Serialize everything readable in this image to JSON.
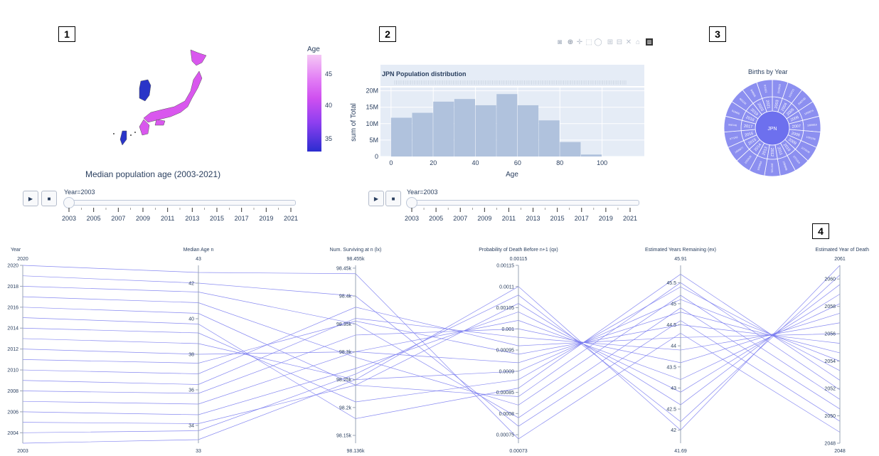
{
  "markers": [
    "1",
    "2",
    "3",
    "4"
  ],
  "map_panel": {
    "title": "Median population age (2003-2021)",
    "colorbar_title": "Age",
    "colorbar_ticks": [
      "45",
      "40",
      "35"
    ],
    "slider_label": "Year=2003",
    "slider_ticks": [
      "2003",
      "2005",
      "2007",
      "2009",
      "2011",
      "2013",
      "2015",
      "2017",
      "2019",
      "2021"
    ],
    "play_icon": "▶",
    "stop_icon": "■",
    "countries": [
      {
        "name": "Japan",
        "value": 44,
        "color": "#d957ee"
      },
      {
        "name": "Korea",
        "value": 33,
        "color": "#2a35c8"
      },
      {
        "name": "Taiwan",
        "value": 33,
        "color": "#2a35c8"
      }
    ]
  },
  "histogram_panel": {
    "title": "JPN Population distribution",
    "modebar_icons": [
      "camera-icon",
      "zoom-icon",
      "pan-icon",
      "box-select-icon",
      "lasso-icon",
      "zoom-in-icon",
      "zoom-out-icon",
      "autoscale-icon",
      "reset-icon",
      "plotly-logo-icon"
    ],
    "slider_label": "Year=2003",
    "slider_ticks": [
      "2003",
      "2005",
      "2007",
      "2009",
      "2011",
      "2013",
      "2015",
      "2017",
      "2019",
      "2021"
    ],
    "play_icon": "▶",
    "stop_icon": "■"
  },
  "sunburst_panel": {
    "title": "Births by Year",
    "center_label": "JPN",
    "inner_labels": [
      "2003",
      "2004",
      "2005",
      "2006",
      "2007",
      "2008",
      "2009",
      "2010",
      "2011",
      "2012",
      "2013",
      "2014",
      "2015",
      "2016",
      "2017",
      "2018",
      "2019",
      "2020",
      "2021"
    ],
    "outer_labels": [
      "1123610",
      "1110721",
      "1062530",
      "1092674",
      "1089818",
      "1091156",
      "1070035",
      "1071304",
      "1050806",
      "1037231",
      "1029816",
      "1003539",
      "1005677",
      "977242",
      "946146",
      "918400",
      "865239",
      "840835",
      "811622"
    ],
    "color": "#8c8ff0"
  },
  "chart_data": [
    {
      "type": "bar",
      "title": "JPN Population distribution",
      "xlabel": "Age",
      "ylabel": "sum of Total",
      "x_tick_labels": [
        "0",
        "20",
        "40",
        "60",
        "80",
        "100"
      ],
      "y_tick_labels": [
        "0",
        "5M",
        "10M",
        "15M",
        "20M"
      ],
      "xlim": [
        -5,
        120
      ],
      "ylim": [
        0,
        21000000
      ],
      "bin_width": 10,
      "bins": [
        0,
        10,
        20,
        30,
        40,
        50,
        60,
        70,
        80,
        90
      ],
      "values": [
        11800000,
        13300000,
        16700000,
        17500000,
        15600000,
        19000000,
        15600000,
        11000000,
        4400000,
        600000
      ],
      "bar_color": "#b0c2dd",
      "grid": true
    },
    {
      "type": "parallel_coordinates",
      "line_color": "#7a7cf0",
      "dimensions": [
        {
          "label": "Year",
          "range_top": "2020",
          "range_bottom": "2003",
          "min": 2003,
          "max": 2020,
          "ticks": [
            "2020",
            "2018",
            "2016",
            "2014",
            "2012",
            "2010",
            "2008",
            "2006",
            "2004"
          ],
          "tick_values": [
            2020,
            2018,
            2016,
            2014,
            2012,
            2010,
            2008,
            2006,
            2004
          ]
        },
        {
          "label": "Median Age n",
          "range_top": "43",
          "range_bottom": "33",
          "min": 33,
          "max": 43,
          "ticks": [
            "42",
            "40",
            "38",
            "36",
            "34"
          ],
          "tick_values": [
            42,
            40,
            38,
            36,
            34
          ]
        },
        {
          "label": "Num. Surviving at n (lx)",
          "range_top": "98.455k",
          "range_bottom": "98.136k",
          "min": 98136,
          "max": 98455,
          "ticks": [
            "98.45k",
            "98.4k",
            "98.35k",
            "98.3k",
            "98.25k",
            "98.2k",
            "98.15k"
          ],
          "tick_values": [
            98450,
            98400,
            98350,
            98300,
            98250,
            98200,
            98150
          ]
        },
        {
          "label": "Probability of Death Before n+1 (qx)",
          "range_top": "0.00115",
          "range_bottom": "0.00073",
          "min": 0.00073,
          "max": 0.00115,
          "ticks": [
            "0.00115",
            "0.0011",
            "0.00105",
            "0.001",
            "0.00095",
            "0.0009",
            "0.00085",
            "0.0008",
            "0.00075"
          ],
          "tick_values": [
            0.00115,
            0.0011,
            0.00105,
            0.001,
            0.00095,
            0.0009,
            0.00085,
            0.0008,
            0.00075
          ]
        },
        {
          "label": "Estimated Years Remaining (ex)",
          "range_top": "45.91",
          "range_bottom": "41.69",
          "min": 41.69,
          "max": 45.91,
          "ticks": [
            "45.5",
            "45",
            "44.5",
            "44",
            "43.5",
            "43",
            "42.5",
            "42"
          ],
          "tick_values": [
            45.5,
            45,
            44.5,
            44,
            43.5,
            43,
            42.5,
            42
          ]
        },
        {
          "label": "Estimated Year of Death",
          "range_top": "2061",
          "range_bottom": "2048",
          "min": 2048,
          "max": 2061,
          "ticks": [
            "2060",
            "2058",
            "2056",
            "2054",
            "2052",
            "2050",
            "2048"
          ],
          "tick_values": [
            2060,
            2058,
            2056,
            2054,
            2052,
            2050,
            2048
          ]
        }
      ],
      "lines": [
        [
          2003,
          33.2,
          98250,
          0.0011,
          42.0,
          2061.0
        ],
        [
          2004,
          33.7,
          98260,
          0.00108,
          42.2,
          2060.3
        ],
        [
          2005,
          34.1,
          98240,
          0.00106,
          42.6,
          2059.6
        ],
        [
          2006,
          34.6,
          98270,
          0.00104,
          42.9,
          2058.9
        ],
        [
          2007,
          35.2,
          98300,
          0.00102,
          43.2,
          2058.2
        ],
        [
          2008,
          35.8,
          98330,
          0.001,
          43.6,
          2057.5
        ],
        [
          2009,
          36.3,
          98360,
          0.00098,
          43.9,
          2056.8
        ],
        [
          2010,
          36.9,
          98380,
          0.00096,
          44.2,
          2056.0
        ],
        [
          2011,
          37.5,
          98355,
          0.00094,
          44.5,
          2055.3
        ],
        [
          2012,
          38.0,
          98300,
          0.00092,
          44.8,
          2054.6
        ],
        [
          2013,
          38.6,
          98250,
          0.0009,
          45.1,
          2054.0
        ],
        [
          2014,
          39.2,
          98210,
          0.00088,
          45.4,
          2053.3
        ],
        [
          2015,
          39.7,
          98180,
          0.00086,
          45.7,
          2052.6
        ],
        [
          2016,
          40.3,
          98240,
          0.00084,
          45.5,
          2051.9
        ],
        [
          2017,
          40.9,
          98290,
          0.00082,
          45.2,
          2051.2
        ],
        [
          2018,
          41.5,
          98350,
          0.00079,
          44.9,
          2050.5
        ],
        [
          2019,
          42.0,
          98400,
          0.00077,
          44.6,
          2049.6
        ],
        [
          2020,
          42.6,
          98440,
          0.00074,
          44.3,
          2048.8
        ]
      ]
    }
  ]
}
